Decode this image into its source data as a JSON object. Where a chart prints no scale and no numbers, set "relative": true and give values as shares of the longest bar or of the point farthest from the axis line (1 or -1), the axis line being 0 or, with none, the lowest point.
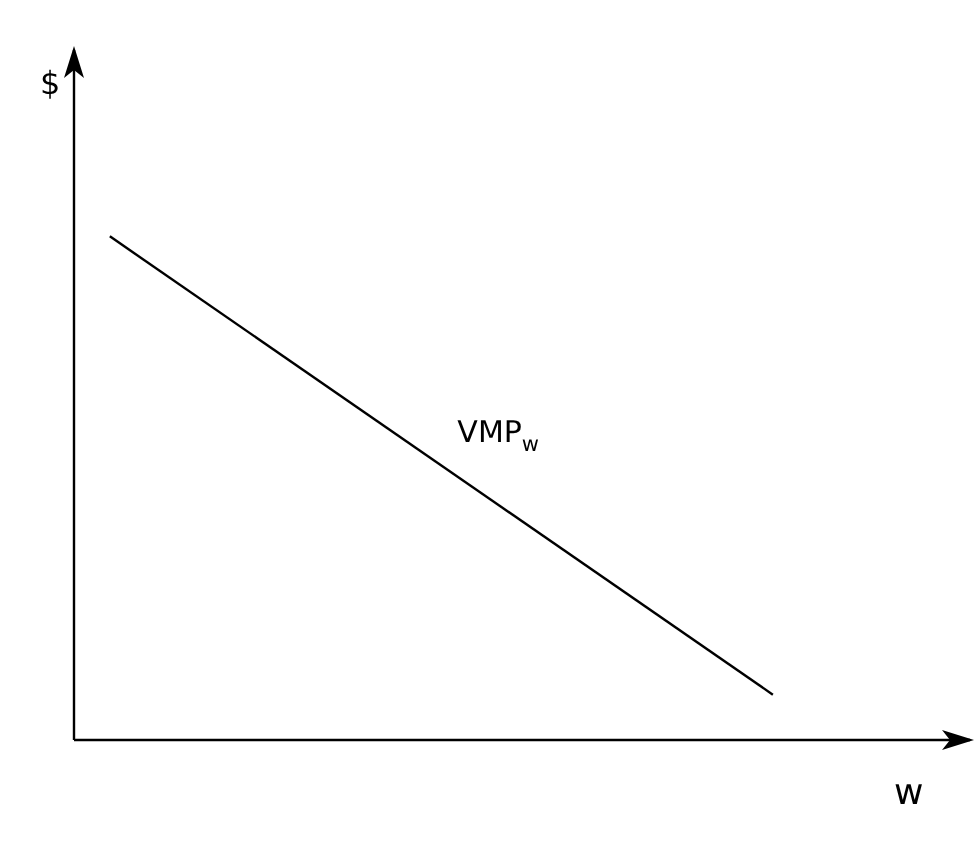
{
  "chart_data": {
    "type": "line",
    "relative": true,
    "xlabel": "w",
    "ylabel": "$",
    "categories": [
      null,
      null,
      null,
      null,
      null,
      null,
      null,
      null,
      null,
      null,
      null,
      null,
      null,
      null,
      null,
      null,
      null,
      null,
      null,
      null,
      null,
      null,
      null,
      null,
      null,
      null,
      null,
      null,
      null,
      null,
      null,
      null,
      null,
      null,
      null,
      null,
      null,
      null,
      null,
      null,
      null,
      null,
      null,
      null,
      null,
      null,
      null,
      null,
      null,
      null,
      null
    ],
    "series": [
      {
        "color": "#000000",
        "values": [
          null,
          null,
          1,
          null,
          null,
          null,
          null,
          null,
          null,
          null,
          null,
          null,
          null,
          null,
          null,
          null,
          null,
          null,
          null,
          null,
          null,
          null,
          null,
          null,
          null,
          null,
          null,
          null,
          null,
          null,
          null,
          null,
          null,
          null,
          null,
          null,
          null,
          null,
          null,
          0.09,
          null,
          null,
          null,
          null,
          null,
          null,
          null,
          null,
          null,
          null,
          null
        ]
      }
    ],
    "annotations": [
      "VMP$_{w}$"
    ]
  }
}
